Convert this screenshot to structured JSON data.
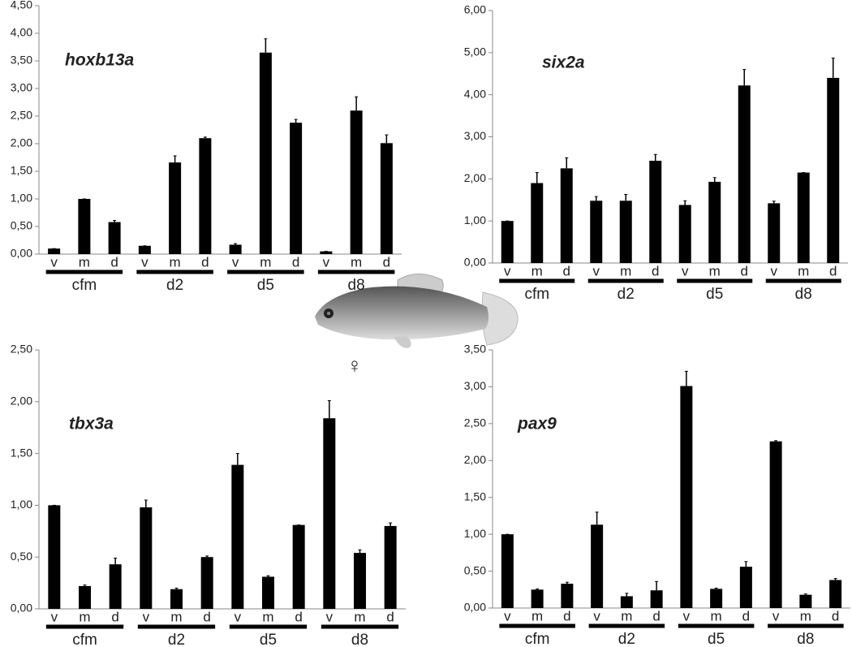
{
  "chart_data": [
    {
      "type": "bar",
      "title": "hoxb13a",
      "color": "#000000",
      "categories": [
        "v",
        "m",
        "d",
        "v",
        "m",
        "d",
        "v",
        "m",
        "d",
        "v",
        "m",
        "d"
      ],
      "groups": [
        "cfm",
        "d2",
        "d5",
        "d8"
      ],
      "values": [
        0.1,
        1.0,
        0.58,
        0.15,
        1.66,
        2.1,
        0.17,
        3.65,
        2.38,
        0.05,
        2.6,
        2.01
      ],
      "errors": [
        0,
        0,
        0.03,
        0,
        0.12,
        0.02,
        0.02,
        0.25,
        0.06,
        0,
        0.25,
        0.15
      ],
      "ylim": [
        0,
        4.5
      ],
      "yticks": [
        {
          "value": 0,
          "label": "0,00"
        },
        {
          "value": 0.5,
          "label": "0,50"
        },
        {
          "value": 1,
          "label": "1,00"
        },
        {
          "value": 1.5,
          "label": "1,50"
        },
        {
          "value": 2,
          "label": "2,00"
        },
        {
          "value": 2.5,
          "label": "2,50"
        },
        {
          "value": 3,
          "label": "3,00"
        },
        {
          "value": 3.5,
          "label": "3,50"
        },
        {
          "value": 4,
          "label": "4,00"
        },
        {
          "value": 4.5,
          "label": "4,50"
        }
      ]
    },
    {
      "type": "bar",
      "title": "six2a",
      "color": "#000000",
      "categories": [
        "v",
        "m",
        "d",
        "v",
        "m",
        "d",
        "v",
        "m",
        "d",
        "v",
        "m",
        "d"
      ],
      "groups": [
        "cfm",
        "d2",
        "d5",
        "d8"
      ],
      "values": [
        1.0,
        1.9,
        2.25,
        1.48,
        1.48,
        2.43,
        1.38,
        1.93,
        4.22,
        1.42,
        2.15,
        4.4
      ],
      "errors": [
        0,
        0.25,
        0.25,
        0.1,
        0.15,
        0.15,
        0.1,
        0.1,
        0.38,
        0.05,
        0,
        0.47
      ],
      "ylim": [
        0,
        6
      ],
      "yticks": [
        {
          "value": 0,
          "label": "0,00"
        },
        {
          "value": 1,
          "label": "1,00"
        },
        {
          "value": 2,
          "label": "2,00"
        },
        {
          "value": 3,
          "label": "3,00"
        },
        {
          "value": 4,
          "label": "4,00"
        },
        {
          "value": 5,
          "label": "5,00"
        },
        {
          "value": 6,
          "label": "6,00"
        }
      ]
    },
    {
      "type": "bar",
      "title": "tbx3a",
      "color": "#000000",
      "categories": [
        "v",
        "m",
        "d",
        "v",
        "m",
        "d",
        "v",
        "m",
        "d",
        "v",
        "m",
        "d"
      ],
      "groups": [
        "cfm",
        "d2",
        "d5",
        "d8"
      ],
      "values": [
        1.0,
        0.22,
        0.43,
        0.98,
        0.19,
        0.5,
        1.39,
        0.31,
        0.81,
        1.84,
        0.54,
        0.8
      ],
      "errors": [
        0,
        0.01,
        0.06,
        0.07,
        0.01,
        0.01,
        0.11,
        0.01,
        0,
        0.17,
        0.03,
        0.03
      ],
      "ylim": [
        0,
        2.5
      ],
      "yticks": [
        {
          "value": 0,
          "label": "0,00"
        },
        {
          "value": 0.5,
          "label": "0,50"
        },
        {
          "value": 1,
          "label": "1,00"
        },
        {
          "value": 1.5,
          "label": "1,50"
        },
        {
          "value": 2,
          "label": "2,00"
        },
        {
          "value": 2.5,
          "label": "2,50"
        }
      ]
    },
    {
      "type": "bar",
      "title": "pax9",
      "color": "#000000",
      "categories": [
        "v",
        "m",
        "d",
        "v",
        "m",
        "d",
        "v",
        "m",
        "d",
        "v",
        "m",
        "d"
      ],
      "groups": [
        "cfm",
        "d2",
        "d5",
        "d8"
      ],
      "values": [
        1.0,
        0.25,
        0.33,
        1.13,
        0.16,
        0.24,
        3.01,
        0.26,
        0.56,
        2.26,
        0.18,
        0.38
      ],
      "errors": [
        0,
        0.01,
        0.02,
        0.17,
        0.04,
        0.12,
        0.2,
        0.01,
        0.07,
        0.01,
        0.01,
        0.02
      ],
      "ylim": [
        0,
        3.5
      ],
      "yticks": [
        {
          "value": 0,
          "label": "0,00"
        },
        {
          "value": 0.5,
          "label": "0,50"
        },
        {
          "value": 1,
          "label": "1,00"
        },
        {
          "value": 1.5,
          "label": "1,50"
        },
        {
          "value": 2,
          "label": "2,00"
        },
        {
          "value": 2.5,
          "label": "2,50"
        },
        {
          "value": 3,
          "label": "3,00"
        },
        {
          "value": 3.5,
          "label": "3,50"
        }
      ]
    }
  ],
  "symbol": "♀"
}
